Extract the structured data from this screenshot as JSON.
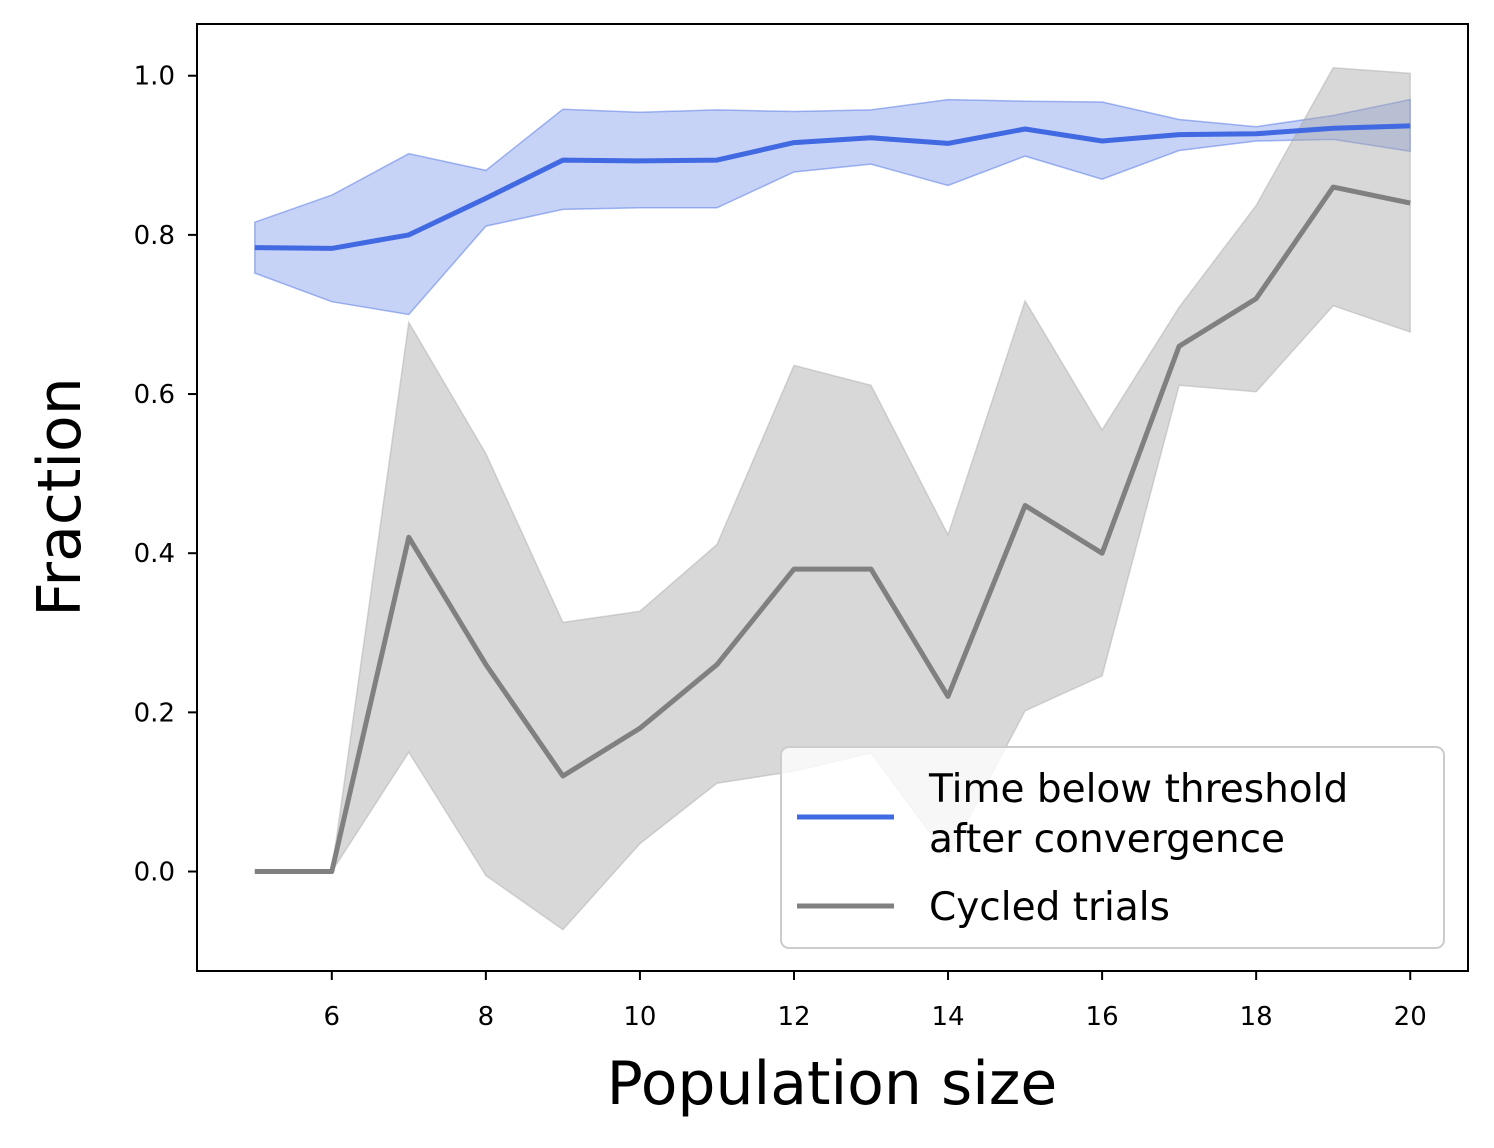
{
  "chart_data": {
    "type": "line",
    "title": "",
    "xlabel": "Population size",
    "ylabel": "Fraction",
    "xlim": [
      4.25,
      20.75
    ],
    "ylim": [
      -0.125,
      1.065
    ],
    "xticks": [
      6,
      8,
      10,
      12,
      14,
      16,
      18,
      20
    ],
    "xtick_labels": [
      "6",
      "8",
      "10",
      "12",
      "14",
      "16",
      "18",
      "20"
    ],
    "yticks": [
      0.0,
      0.2,
      0.4,
      0.6,
      0.8,
      1.0
    ],
    "ytick_labels": [
      "0.0",
      "0.2",
      "0.4",
      "0.6",
      "0.8",
      "1.0"
    ],
    "grid": false,
    "legend_position": "lower-right",
    "x": [
      5,
      6,
      7,
      8,
      9,
      10,
      11,
      12,
      13,
      14,
      15,
      16,
      17,
      18,
      19,
      20
    ],
    "series": [
      {
        "name": "Time below threshold after convergence",
        "legend_lines": [
          "Time below threshold",
          "after convergence"
        ],
        "color": "#4169e1",
        "band_color": "#4169e1",
        "values": [
          0.784,
          0.783,
          0.8,
          0.846,
          0.894,
          0.893,
          0.894,
          0.916,
          0.922,
          0.915,
          0.933,
          0.918,
          0.926,
          0.927,
          0.934,
          0.937
        ],
        "lower": [
          0.752,
          0.716,
          0.7,
          0.811,
          0.832,
          0.834,
          0.834,
          0.879,
          0.889,
          0.862,
          0.899,
          0.87,
          0.906,
          0.918,
          0.92,
          0.905
        ],
        "upper": [
          0.816,
          0.85,
          0.902,
          0.881,
          0.958,
          0.954,
          0.957,
          0.955,
          0.957,
          0.97,
          0.968,
          0.967,
          0.945,
          0.936,
          0.95,
          0.97
        ]
      },
      {
        "name": "Cycled trials",
        "legend_lines": [
          "Cycled trials"
        ],
        "color": "#808080",
        "band_color": "#a9a9a9",
        "values": [
          0.0,
          0.0,
          0.42,
          0.26,
          0.12,
          0.18,
          0.26,
          0.38,
          0.38,
          0.22,
          0.46,
          0.4,
          0.66,
          0.72,
          0.86,
          0.84
        ],
        "lower": [
          0.0,
          0.0,
          0.15,
          -0.005,
          -0.073,
          0.035,
          0.111,
          0.126,
          0.149,
          0.018,
          0.202,
          0.246,
          0.611,
          0.603,
          0.711,
          0.678
        ],
        "upper": [
          0.0,
          0.0,
          0.69,
          0.525,
          0.313,
          0.327,
          0.411,
          0.636,
          0.611,
          0.423,
          0.717,
          0.555,
          0.709,
          0.837,
          1.01,
          1.003
        ]
      }
    ]
  }
}
